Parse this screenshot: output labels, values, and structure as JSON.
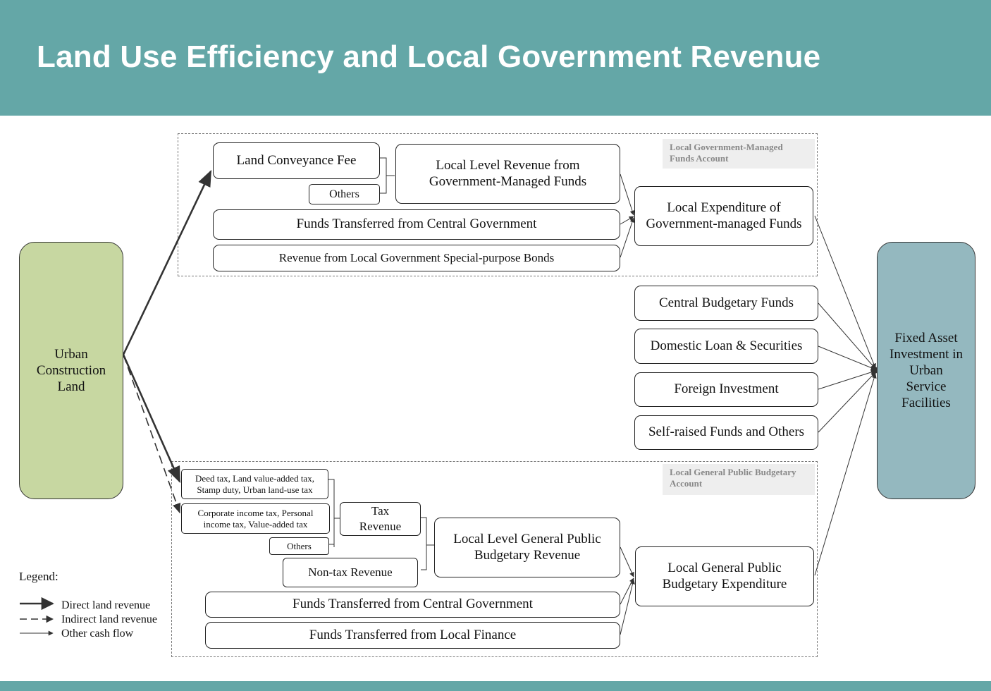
{
  "title": "Land Use Efficiency and Local Government Revenue",
  "source": "Urban Construction Land",
  "target": "Fixed Asset Investment in Urban Service Facilities",
  "gov_managed": {
    "account_label": "Local Government-Managed Funds Account",
    "land_fee": "Land Conveyance Fee",
    "others": "Others",
    "local_revenue": "Local Level Revenue from Government-Managed Funds",
    "central_transfer": "Funds Transferred from Central Government",
    "bonds": "Revenue from Local Government Special-purpose Bonds",
    "expenditure": "Local Expenditure of Government-managed Funds"
  },
  "other_sources": {
    "central_budget": "Central Budgetary Funds",
    "domestic_loan": "Domestic Loan & Securities",
    "foreign": "Foreign Investment",
    "self_raised": "Self-raised Funds and Others"
  },
  "public_budget": {
    "account_label": "Local General Public Budgetary Account",
    "deed_tax": "Deed tax, Land value-added tax, Stamp duty, Urban land-use tax",
    "corp_tax": "Corporate income tax, Personal income tax, Value-added tax",
    "others": "Others",
    "tax_revenue": "Tax Revenue",
    "nontax": "Non-tax Revenue",
    "local_revenue": "Local Level General Public Budgetary Revenue",
    "central_transfer": "Funds Transferred from Central Government",
    "local_transfer": "Funds Transferred from Local Finance",
    "expenditure": "Local General Public Budgetary Expenditure"
  },
  "legend": {
    "title": "Legend:",
    "direct": "Direct land revenue",
    "indirect": "Indirect land revenue",
    "other": "Other cash flow"
  },
  "colors": {
    "header": "#64a7a7",
    "source_fill": "#c7d7a1",
    "target_fill": "#94b8bf"
  }
}
